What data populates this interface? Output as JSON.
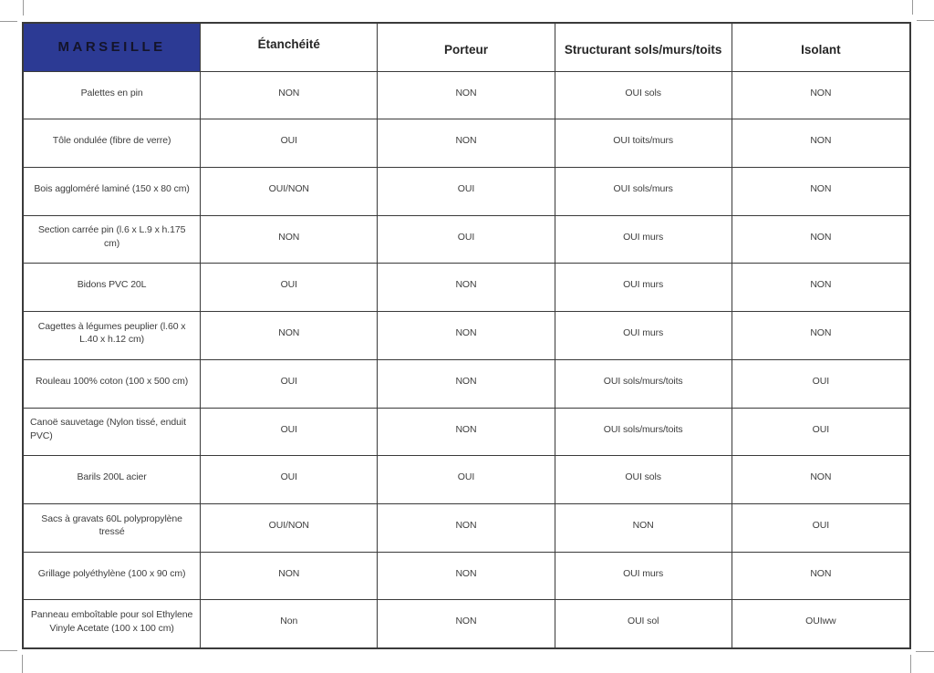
{
  "table": {
    "title": "MARSEILLE",
    "columns": [
      "Étanchéité",
      "Porteur",
      "Structurant sols/murs/toits",
      "Isolant"
    ],
    "rows": [
      {
        "name": "Palettes en pin",
        "values": [
          "NON",
          "NON",
          "OUI sols",
          "NON"
        ]
      },
      {
        "name": "Tôle ondulée (fibre de verre)",
        "values": [
          "OUI",
          "NON",
          "OUI toits/murs",
          "NON"
        ]
      },
      {
        "name": "Bois aggloméré laminé (150 x 80 cm)",
        "values": [
          "OUI/NON",
          "OUI",
          "OUI sols/murs",
          "NON"
        ]
      },
      {
        "name": "Section carrée pin (l.6 x L.9 x h.175 cm)",
        "values": [
          "NON",
          "OUI",
          "OUI murs",
          "NON"
        ]
      },
      {
        "name": "Bidons PVC 20L",
        "values": [
          "OUI",
          "NON",
          "OUI murs",
          "NON"
        ]
      },
      {
        "name": "Cagettes à légumes peuplier (l.60 x L.40 x h.12 cm)",
        "values": [
          "NON",
          "NON",
          "OUI murs",
          "NON"
        ]
      },
      {
        "name": "Rouleau 100% coton (100 x 500 cm)",
        "values": [
          "OUI",
          "NON",
          "OUI sols/murs/toits",
          "OUI"
        ]
      },
      {
        "name": "Canoë sauvetage (Nylon tissé, enduit PVC)",
        "name_align": "left",
        "values": [
          "OUI",
          "NON",
          "OUI sols/murs/toits",
          "OUI"
        ]
      },
      {
        "name": "Barils 200L acier",
        "values": [
          "OUI",
          "OUI",
          "OUI sols",
          "NON"
        ]
      },
      {
        "name": "Sacs à gravats 60L polypropylène tressé",
        "values": [
          "OUI/NON",
          "NON",
          "NON",
          "OUI"
        ]
      },
      {
        "name": "Grillage polyéthylène (100 x 90 cm)",
        "values": [
          "NON",
          "NON",
          "OUI murs",
          "NON"
        ]
      },
      {
        "name": "Panneau emboîtable pour sol Ethylene Vinyle Acetate (100 x 100 cm)",
        "values": [
          "Non",
          "NON",
          "OUI sol",
          "OUIww"
        ]
      }
    ],
    "colors": {
      "accent_blue": "#2c3a94",
      "border": "#3a3a3a",
      "text": "#3d3d3d",
      "header_text": "#262626",
      "title_text": "#14142a",
      "crop_mark": "#999999"
    }
  }
}
